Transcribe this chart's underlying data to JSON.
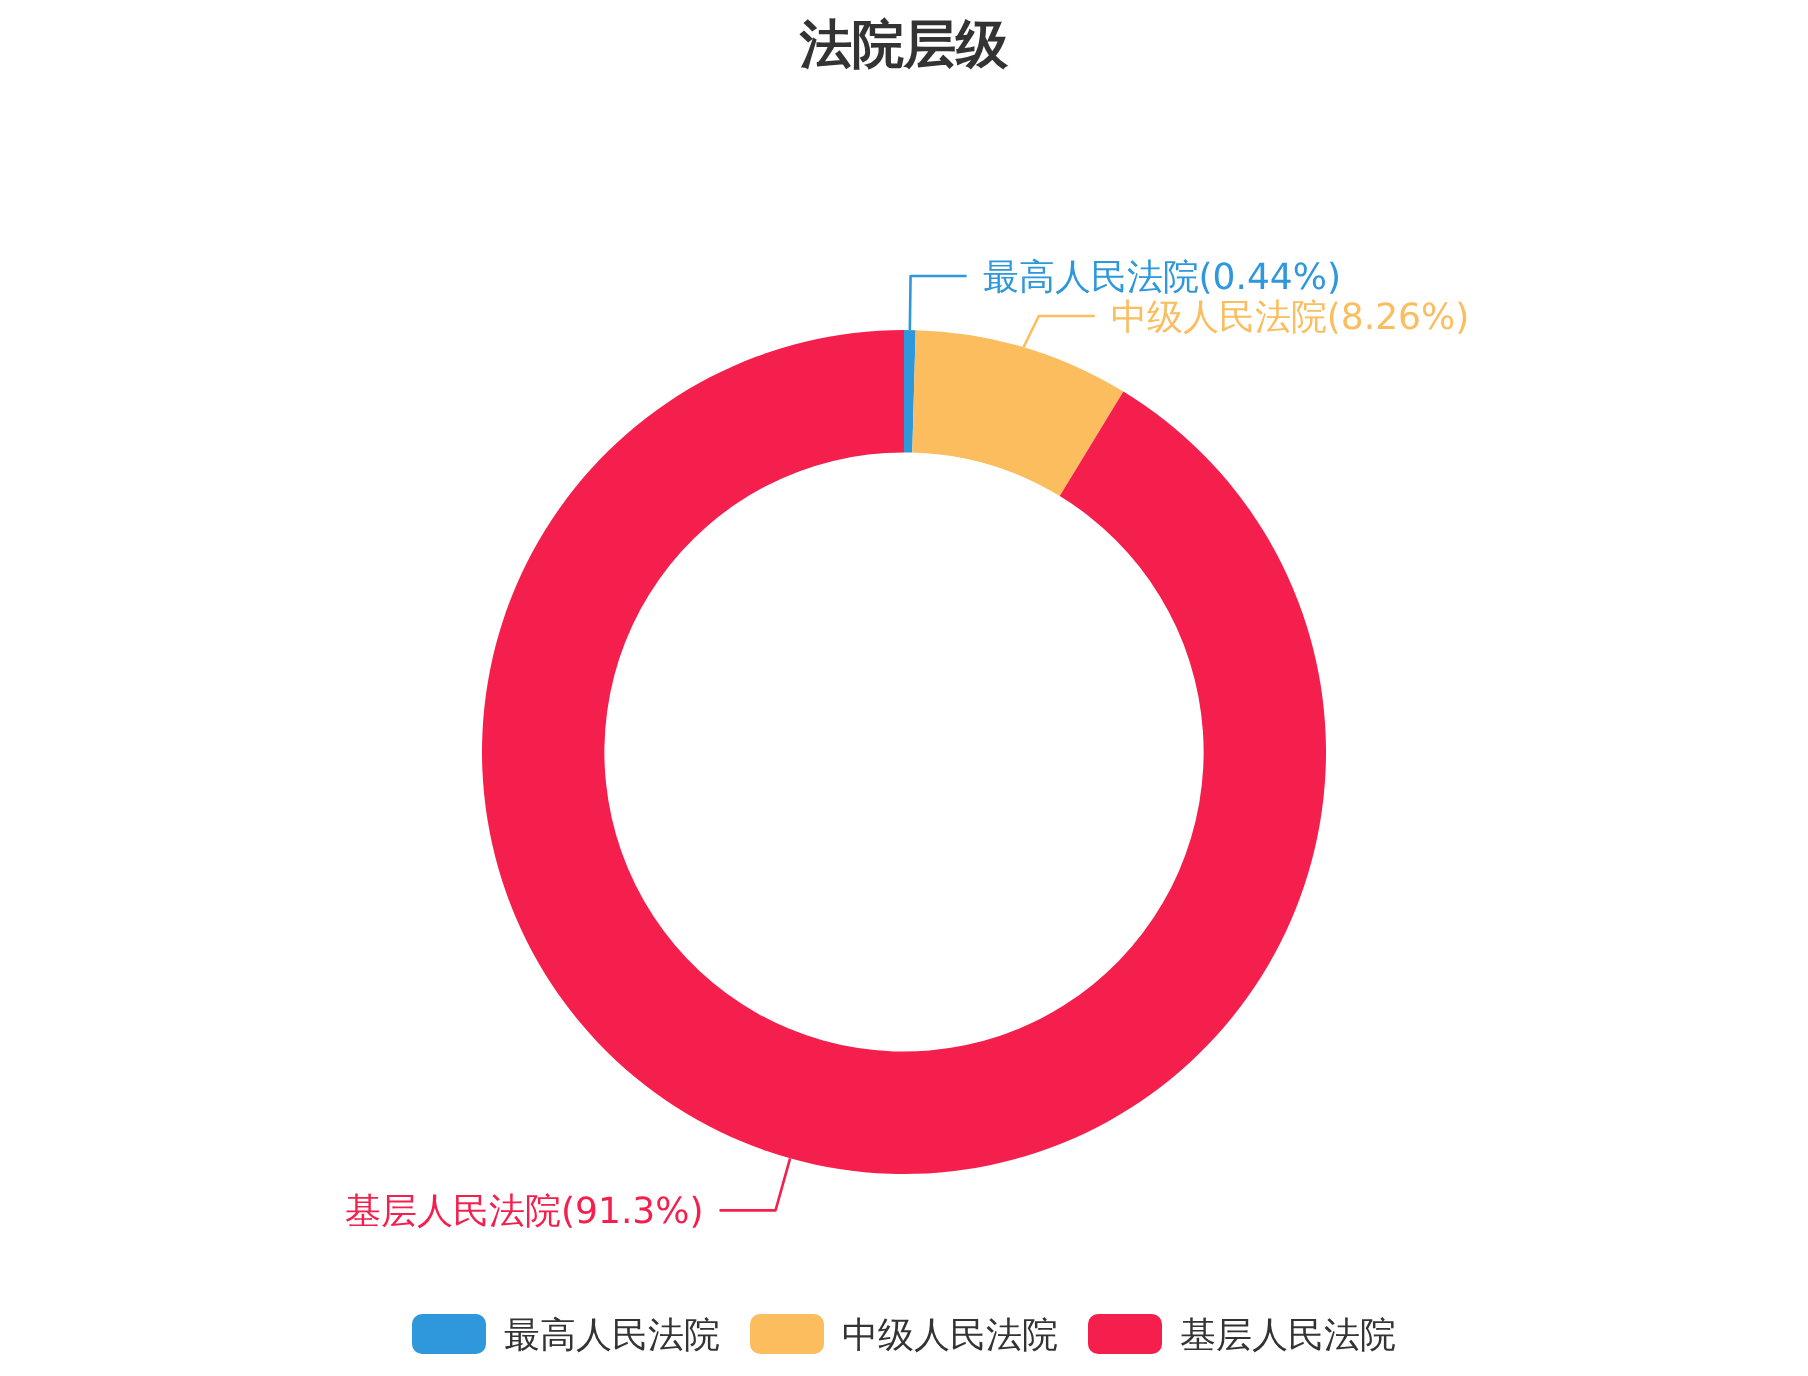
{
  "chart_data": {
    "type": "donut",
    "title": "法院层级",
    "categories": [
      "最高人民法院",
      "中级人民法院",
      "基层人民法院"
    ],
    "values": [
      0.44,
      8.26,
      91.3
    ],
    "colors": [
      "#2f98dc",
      "#fbbd5e",
      "#f41f4c"
    ],
    "value_labels": [
      "(0.44%)",
      "(8.26%)",
      "(91.3%)"
    ],
    "legend": "bottom"
  }
}
